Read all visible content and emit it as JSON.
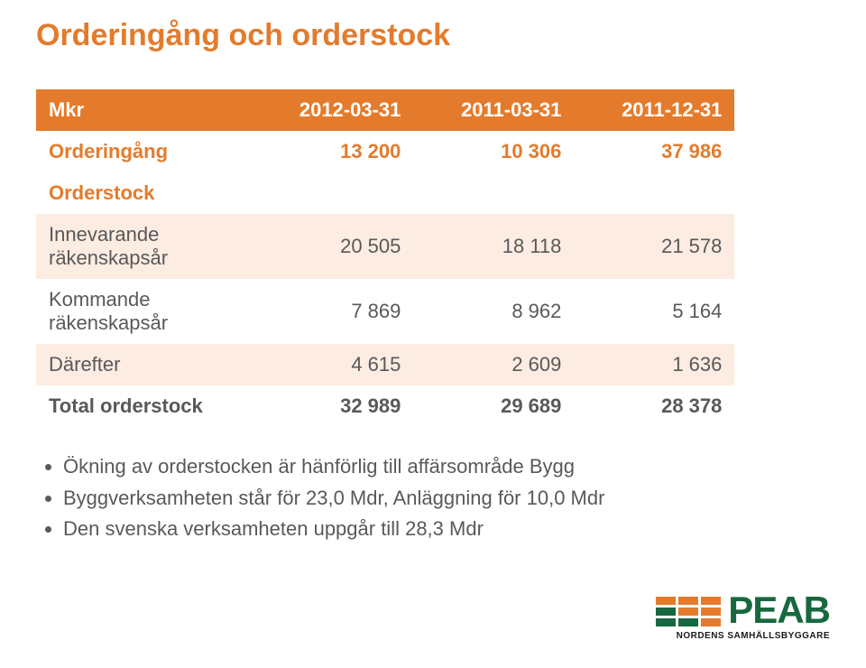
{
  "title": "Orderingång och orderstock",
  "table": {
    "header": {
      "c0": "Mkr",
      "c1": "2012-03-31",
      "c2": "2011-03-31",
      "c3": "2011-12-31"
    },
    "rows": [
      {
        "type": "section",
        "c0": "Orderingång",
        "c1": "13 200",
        "c2": "10 306",
        "c3": "37 986"
      },
      {
        "type": "section",
        "c0": "Orderstock",
        "c1": "",
        "c2": "",
        "c3": ""
      },
      {
        "type": "data",
        "shade": "light",
        "c0": "Innevarande räkenskapsår",
        "c1": "20 505",
        "c2": "18 118",
        "c3": "21 578"
      },
      {
        "type": "data",
        "shade": "white",
        "c0": "Kommande räkenskapsår",
        "c1": "7 869",
        "c2": "8 962",
        "c3": "5 164"
      },
      {
        "type": "data",
        "shade": "light",
        "c0": "Därefter",
        "c1": "4 615",
        "c2": "2 609",
        "c3": "1 636"
      },
      {
        "type": "total",
        "c0": "Total orderstock",
        "c1": "32 989",
        "c2": "29 689",
        "c3": "28 378"
      }
    ]
  },
  "bullets": [
    "Ökning av orderstocken är hänförlig till affärsområde Bygg",
    "Byggverksamheten står för 23,0 Mdr, Anläggning för 10,0 Mdr",
    "Den svenska verksamheten uppgår till 28,3 Mdr"
  ],
  "logo": {
    "word": "PEAB",
    "tagline": "NORDENS SAMHÄLLSBYGGARE",
    "bar_colors": {
      "row1": [
        "#e47b2c",
        "#e47b2c",
        "#e47b2c"
      ],
      "row2": [
        "#18683f",
        "#e47b2c",
        "#e47b2c"
      ],
      "row3": [
        "#18683f",
        "#18683f",
        "#e47b2c"
      ]
    },
    "word_color": "#18683f",
    "tagline_color": "#1a1a1a"
  },
  "colors": {
    "accent": "#e47b2c",
    "shade_light": "#fcece1",
    "text": "#595959"
  }
}
